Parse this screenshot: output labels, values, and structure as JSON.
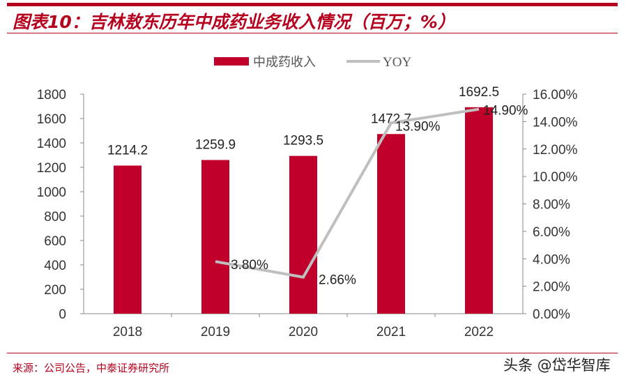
{
  "header": {
    "title": "图表10：吉林敖东历年中成药业务收入情况（百万；%）"
  },
  "footer": {
    "source": "来源：公司公告，中泰证券研究所",
    "watermark": "头条 @岱华智库"
  },
  "chart_data": {
    "type": "bar+line",
    "categories": [
      "2018",
      "2019",
      "2020",
      "2021",
      "2022"
    ],
    "series": [
      {
        "name": "中成药收入",
        "type": "bar",
        "axis": "left",
        "color": "#c0002a",
        "values": [
          1214.2,
          1259.9,
          1293.5,
          1472.7,
          1692.5
        ],
        "labels": [
          "1214.2",
          "1259.9",
          "1293.5",
          "1472.7",
          "1692.5"
        ]
      },
      {
        "name": "YOY",
        "type": "line",
        "axis": "right",
        "color": "#bfbfbf",
        "values": [
          null,
          3.8,
          2.66,
          13.9,
          14.9
        ],
        "labels": [
          "",
          "3.80%",
          "2.66%",
          "13.90%",
          "14.90%"
        ]
      }
    ],
    "left_axis": {
      "range": [
        0,
        1800
      ],
      "ticks": [
        "0",
        "200",
        "400",
        "600",
        "800",
        "1000",
        "1200",
        "1400",
        "1600",
        "1800"
      ]
    },
    "right_axis": {
      "range": [
        0,
        16
      ],
      "ticks": [
        "0.00%",
        "2.00%",
        "4.00%",
        "6.00%",
        "8.00%",
        "10.00%",
        "12.00%",
        "14.00%",
        "16.00%"
      ]
    },
    "legend": "top-center",
    "grid": false
  }
}
